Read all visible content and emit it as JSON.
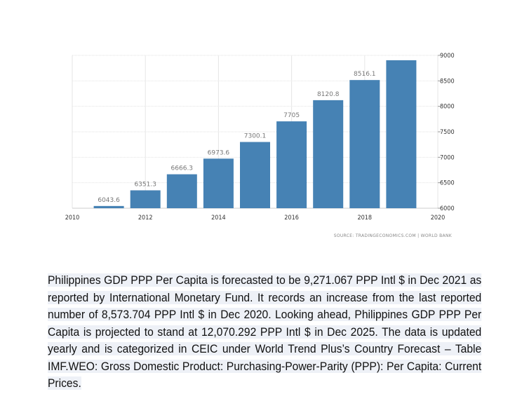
{
  "chart_data": {
    "type": "bar",
    "categories": [
      2011,
      2012,
      2013,
      2014,
      2015,
      2016,
      2017,
      2018,
      2019
    ],
    "values": [
      6043.6,
      6351.3,
      6666.3,
      6973.6,
      7300.1,
      7705,
      8120.8,
      8516.1,
      8905
    ],
    "data_labels": [
      "6043.6",
      "6351.3",
      "6666.3",
      "6973.6",
      "7300.1",
      "7705",
      "8120.8",
      "8516.1",
      ""
    ],
    "title": "",
    "xlabel": "",
    "ylabel": "",
    "xlim": [
      2010,
      2020
    ],
    "ylim": [
      6000,
      9000
    ],
    "x_ticks": [
      "2010",
      "2012",
      "2014",
      "2016",
      "2018",
      "2020"
    ],
    "y_ticks": [
      "6000",
      "6500",
      "7000",
      "7500",
      "8000",
      "8500",
      "9000"
    ],
    "y_axis_position": "right",
    "grid": true,
    "bar_color": "#4682b4",
    "source": "SOURCE: TRADINGECONOMICS.COM | WORLD BANK"
  },
  "description": "Philippines GDP PPP Per Capita is forecasted to be 9,271.067 PPP Intl $ in Dec 2021 as reported by International Monetary Fund. It records an increase from the last reported number of 8,573.704 PPP Intl $ in Dec 2020. Looking ahead, Philippines GDP PPP Per Capita is projected to stand at 12,070.292 PPP Intl $ in Dec 2025. The data is updated yearly and is categorized in CEIC under World Trend Plus’s Country Forecast – Table IMF.WEO: Gross Domestic Product: Purchasing-Power-Parity (PPP): Per Capita: Current Prices."
}
